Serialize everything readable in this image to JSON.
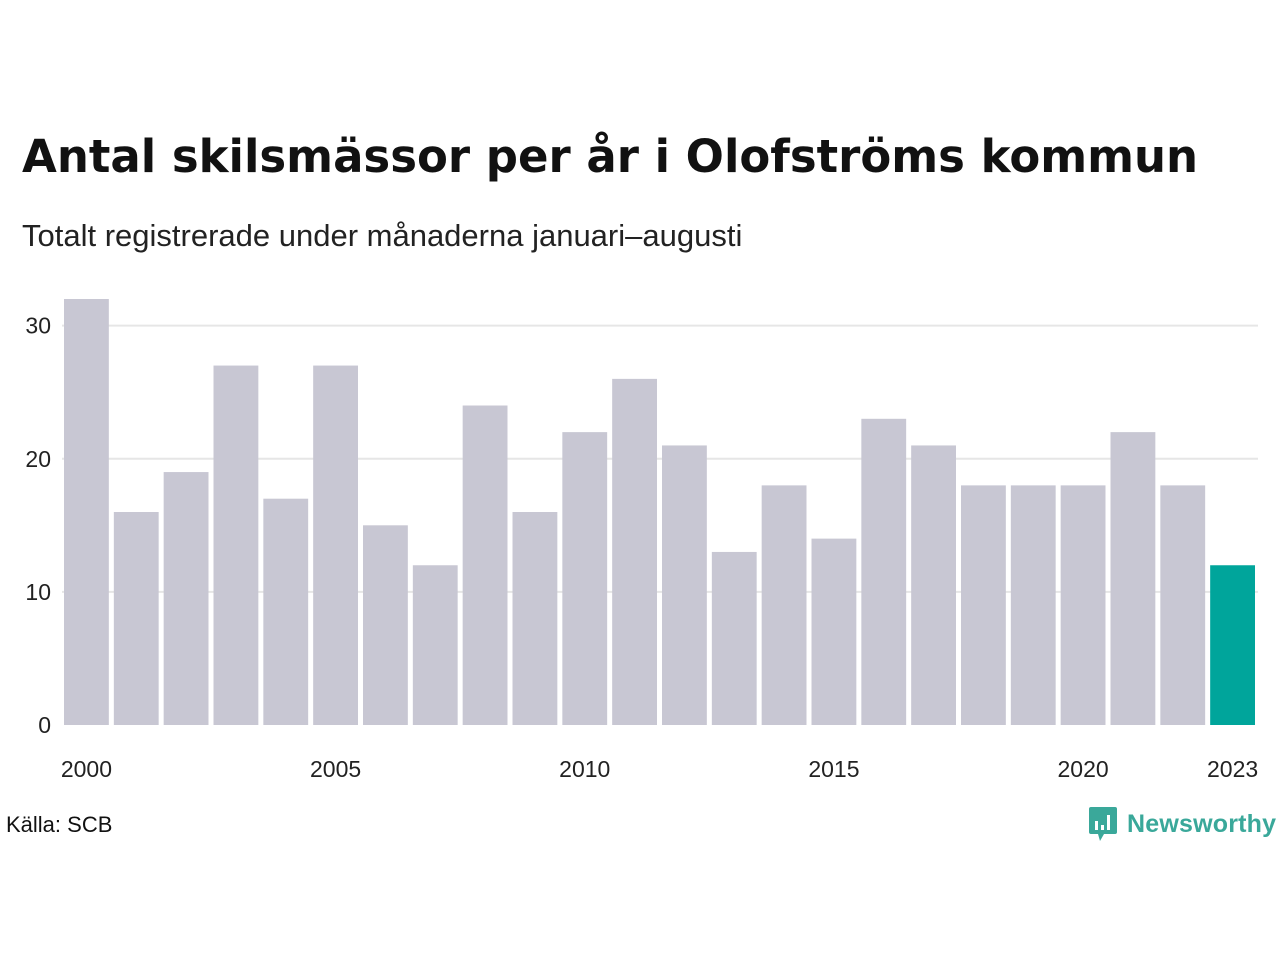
{
  "title": "Antal skilsmässor per år i Olofströms kommun",
  "subtitle": "Totalt registrerade under månaderna januari–augusti",
  "source": "Källa: SCB",
  "brand": {
    "name": "Newsworthy",
    "color": "#3aa89a"
  },
  "colors": {
    "bar": "#c8c7d3",
    "highlight": "#00a59b",
    "grid": "#e6e6e6",
    "text": "#222222"
  },
  "chart_data": {
    "type": "bar",
    "categories": [
      2000,
      2001,
      2002,
      2003,
      2004,
      2005,
      2006,
      2007,
      2008,
      2009,
      2010,
      2011,
      2012,
      2013,
      2014,
      2015,
      2016,
      2017,
      2018,
      2019,
      2020,
      2021,
      2022,
      2023
    ],
    "values": [
      32,
      16,
      19,
      27,
      17,
      27,
      15,
      12,
      24,
      16,
      22,
      26,
      21,
      13,
      18,
      14,
      23,
      21,
      18,
      18,
      18,
      22,
      18,
      12
    ],
    "highlight": [
      2023
    ],
    "xticks": [
      "2000",
      "2005",
      "2010",
      "2015",
      "2020",
      "2023"
    ],
    "yticks": [
      0,
      10,
      20,
      30
    ],
    "ylim": [
      0,
      32
    ],
    "grid": true,
    "legend": "none",
    "xlabel": "",
    "ylabel": ""
  }
}
